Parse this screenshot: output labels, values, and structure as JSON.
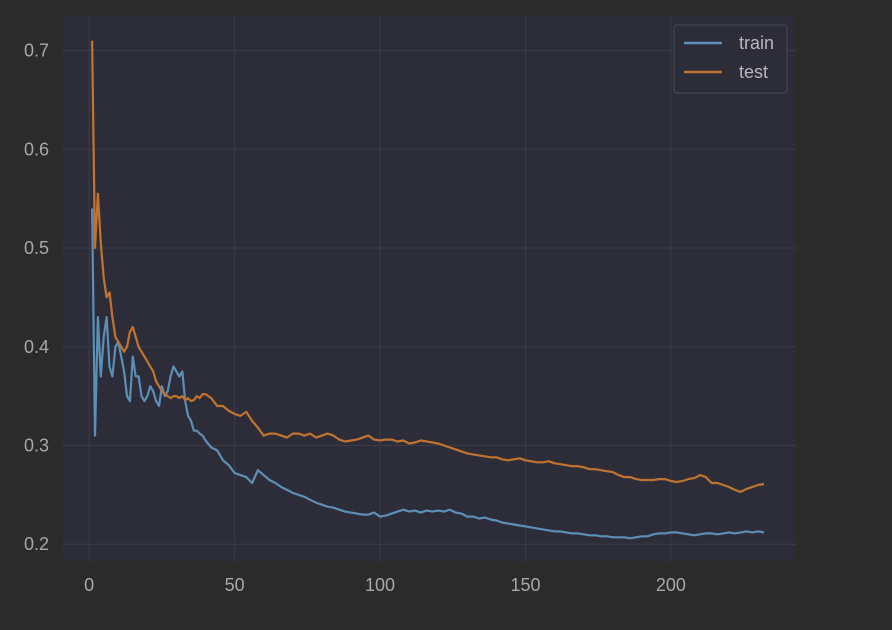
{
  "chart_data": {
    "type": "line",
    "title": "",
    "xlabel": "",
    "ylabel": "",
    "xlim": [
      -9,
      243
    ],
    "ylim": [
      0.183,
      0.735
    ],
    "xticks": [
      0,
      50,
      100,
      150,
      200
    ],
    "yticks": [
      0.2,
      0.3,
      0.4,
      0.5,
      0.6,
      0.7
    ],
    "xtick_labels": [
      "0",
      "50",
      "100",
      "150",
      "200"
    ],
    "ytick_labels": [
      "0.2",
      "0.3",
      "0.4",
      "0.5",
      "0.6",
      "0.7"
    ],
    "grid": true,
    "legend_position": "top-right",
    "background": "#2d2d3a",
    "figure_background": "#2b2b2b",
    "series": [
      {
        "name": "train",
        "color": "#5b8fb5",
        "x": [
          1,
          2,
          3,
          4,
          5,
          6,
          7,
          8,
          9,
          10,
          11,
          12,
          13,
          14,
          15,
          16,
          17,
          18,
          19,
          20,
          21,
          22,
          23,
          24,
          25,
          26,
          27,
          28,
          29,
          30,
          31,
          32,
          33,
          34,
          35,
          36,
          37,
          38,
          39,
          40,
          42,
          44,
          46,
          48,
          50,
          52,
          54,
          56,
          58,
          60,
          62,
          64,
          66,
          68,
          70,
          72,
          74,
          76,
          78,
          80,
          82,
          84,
          86,
          88,
          90,
          92,
          94,
          96,
          98,
          100,
          102,
          104,
          106,
          108,
          110,
          112,
          114,
          116,
          118,
          120,
          122,
          124,
          126,
          128,
          130,
          132,
          134,
          136,
          138,
          140,
          142,
          144,
          146,
          148,
          150,
          152,
          154,
          156,
          158,
          160,
          162,
          164,
          166,
          168,
          170,
          172,
          174,
          176,
          178,
          180,
          182,
          184,
          186,
          188,
          190,
          192,
          194,
          196,
          198,
          200,
          202,
          204,
          206,
          208,
          210,
          212,
          214,
          216,
          218,
          220,
          222,
          224,
          226,
          228,
          230,
          232
        ],
        "y": [
          0.54,
          0.31,
          0.43,
          0.37,
          0.41,
          0.43,
          0.38,
          0.37,
          0.4,
          0.405,
          0.39,
          0.375,
          0.35,
          0.345,
          0.39,
          0.37,
          0.37,
          0.35,
          0.345,
          0.35,
          0.36,
          0.355,
          0.345,
          0.34,
          0.36,
          0.35,
          0.355,
          0.37,
          0.38,
          0.375,
          0.37,
          0.375,
          0.345,
          0.33,
          0.325,
          0.315,
          0.315,
          0.312,
          0.31,
          0.305,
          0.298,
          0.295,
          0.285,
          0.28,
          0.272,
          0.27,
          0.268,
          0.262,
          0.275,
          0.27,
          0.265,
          0.262,
          0.258,
          0.255,
          0.252,
          0.25,
          0.248,
          0.245,
          0.242,
          0.24,
          0.238,
          0.237,
          0.235,
          0.233,
          0.232,
          0.231,
          0.23,
          0.23,
          0.232,
          0.228,
          0.229,
          0.231,
          0.233,
          0.235,
          0.233,
          0.234,
          0.232,
          0.234,
          0.233,
          0.234,
          0.233,
          0.235,
          0.232,
          0.231,
          0.228,
          0.228,
          0.226,
          0.227,
          0.225,
          0.224,
          0.222,
          0.221,
          0.22,
          0.219,
          0.218,
          0.217,
          0.216,
          0.215,
          0.214,
          0.213,
          0.213,
          0.212,
          0.211,
          0.211,
          0.21,
          0.209,
          0.209,
          0.208,
          0.208,
          0.207,
          0.207,
          0.207,
          0.206,
          0.207,
          0.208,
          0.208,
          0.21,
          0.211,
          0.211,
          0.212,
          0.212,
          0.211,
          0.21,
          0.209,
          0.21,
          0.211,
          0.211,
          0.21,
          0.211,
          0.212,
          0.211,
          0.212,
          0.213,
          0.212,
          0.213,
          0.212
        ]
      },
      {
        "name": "test",
        "color": "#c2742e",
        "x": [
          1,
          2,
          3,
          4,
          5,
          6,
          7,
          8,
          9,
          10,
          11,
          12,
          13,
          14,
          15,
          16,
          17,
          18,
          19,
          20,
          21,
          22,
          23,
          24,
          25,
          26,
          27,
          28,
          29,
          30,
          31,
          32,
          33,
          34,
          35,
          36,
          37,
          38,
          39,
          40,
          42,
          44,
          46,
          48,
          50,
          52,
          54,
          56,
          58,
          60,
          62,
          64,
          66,
          68,
          70,
          72,
          74,
          76,
          78,
          80,
          82,
          84,
          86,
          88,
          90,
          92,
          94,
          96,
          98,
          100,
          102,
          104,
          106,
          108,
          110,
          112,
          114,
          116,
          118,
          120,
          122,
          124,
          126,
          128,
          130,
          132,
          134,
          136,
          138,
          140,
          142,
          144,
          146,
          148,
          150,
          152,
          154,
          156,
          158,
          160,
          162,
          164,
          166,
          168,
          170,
          172,
          174,
          176,
          178,
          180,
          182,
          184,
          186,
          188,
          190,
          192,
          194,
          196,
          198,
          200,
          202,
          204,
          206,
          208,
          210,
          212,
          214,
          216,
          218,
          220,
          222,
          224,
          226,
          228,
          230,
          232
        ],
        "y": [
          0.71,
          0.5,
          0.555,
          0.505,
          0.47,
          0.45,
          0.455,
          0.43,
          0.41,
          0.405,
          0.4,
          0.395,
          0.4,
          0.415,
          0.42,
          0.41,
          0.4,
          0.395,
          0.39,
          0.385,
          0.38,
          0.375,
          0.365,
          0.36,
          0.355,
          0.352,
          0.35,
          0.348,
          0.35,
          0.35,
          0.348,
          0.35,
          0.346,
          0.348,
          0.345,
          0.346,
          0.35,
          0.348,
          0.352,
          0.352,
          0.348,
          0.34,
          0.34,
          0.335,
          0.332,
          0.33,
          0.334,
          0.325,
          0.318,
          0.31,
          0.312,
          0.312,
          0.31,
          0.308,
          0.312,
          0.312,
          0.31,
          0.312,
          0.308,
          0.31,
          0.312,
          0.31,
          0.306,
          0.304,
          0.305,
          0.306,
          0.308,
          0.31,
          0.306,
          0.305,
          0.306,
          0.306,
          0.304,
          0.305,
          0.302,
          0.303,
          0.305,
          0.304,
          0.303,
          0.302,
          0.3,
          0.298,
          0.296,
          0.294,
          0.292,
          0.291,
          0.29,
          0.289,
          0.288,
          0.288,
          0.286,
          0.285,
          0.286,
          0.287,
          0.285,
          0.284,
          0.283,
          0.283,
          0.284,
          0.282,
          0.281,
          0.28,
          0.279,
          0.279,
          0.278,
          0.276,
          0.276,
          0.275,
          0.274,
          0.273,
          0.27,
          0.268,
          0.268,
          0.266,
          0.265,
          0.265,
          0.265,
          0.266,
          0.266,
          0.264,
          0.263,
          0.264,
          0.266,
          0.267,
          0.27,
          0.268,
          0.262,
          0.262,
          0.26,
          0.258,
          0.255,
          0.253,
          0.256,
          0.258,
          0.26,
          0.261
        ]
      }
    ]
  }
}
